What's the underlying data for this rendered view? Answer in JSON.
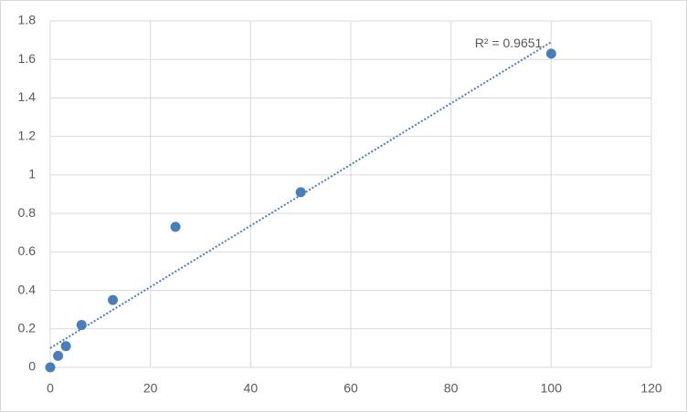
{
  "chart_data": {
    "type": "scatter",
    "x": [
      0,
      1.5625,
      3.125,
      6.25,
      12.5,
      25,
      50,
      100
    ],
    "values": [
      0,
      0.06,
      0.11,
      0.22,
      0.35,
      0.73,
      0.91,
      1.63
    ],
    "color": "#4a7ebb",
    "xlim": [
      0,
      120
    ],
    "xticks": [
      0,
      20,
      40,
      60,
      80,
      100,
      120
    ],
    "ylim": [
      0,
      1.8
    ],
    "yticks": [
      0,
      0.2,
      0.4,
      0.6,
      0.8,
      1,
      1.2,
      1.4,
      1.6,
      1.8
    ],
    "grid": true,
    "trendline": {
      "x": [
        0,
        100
      ],
      "values": [
        0.1,
        1.69
      ],
      "label": "R² = 0.9651"
    }
  }
}
